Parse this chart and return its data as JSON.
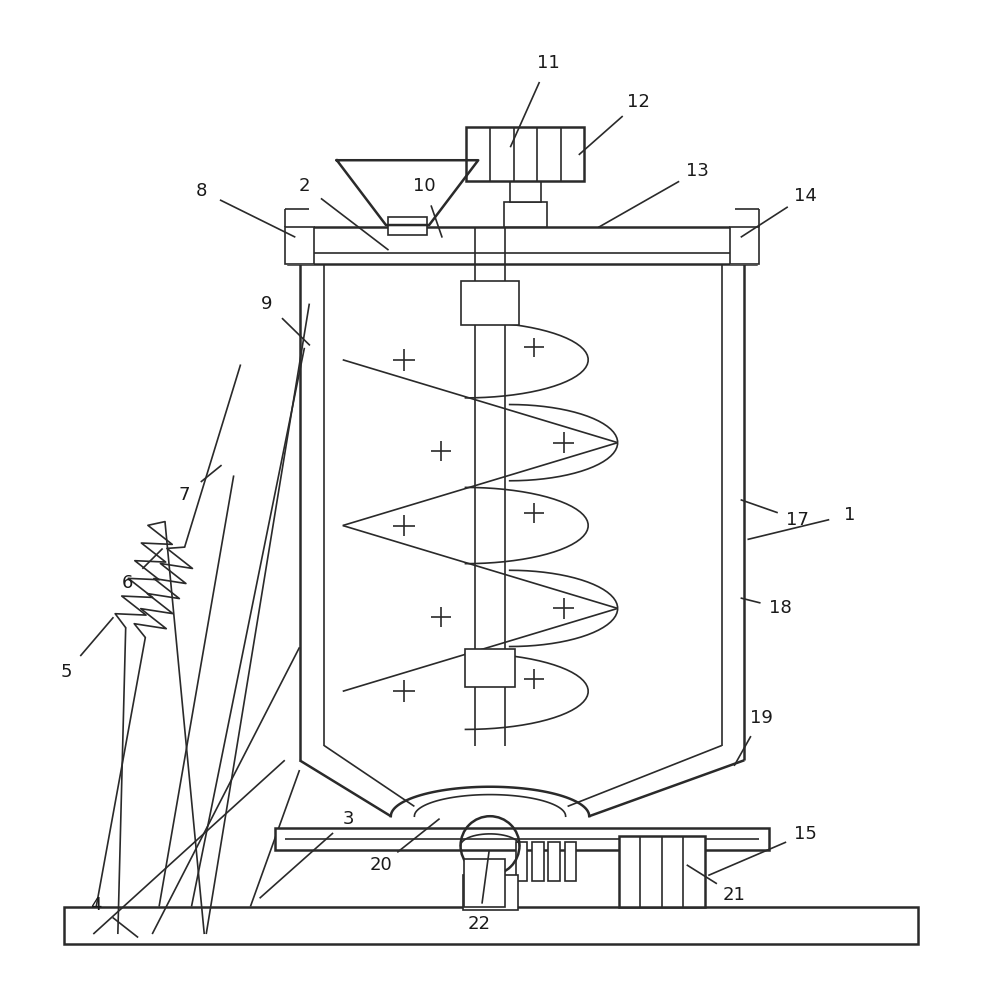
{
  "bg_color": "#ffffff",
  "line_color": "#2a2a2a",
  "lw_main": 1.8,
  "lw_thin": 1.2,
  "labels": {
    "1": [
      0.865,
      0.485,
      0.762,
      0.46
    ],
    "2": [
      0.31,
      0.82,
      0.395,
      0.755
    ],
    "3": [
      0.355,
      0.175,
      0.265,
      0.095
    ],
    "4": [
      0.098,
      0.088,
      0.14,
      0.055
    ],
    "5": [
      0.068,
      0.325,
      0.115,
      0.38
    ],
    "6": [
      0.13,
      0.415,
      0.165,
      0.45
    ],
    "7": [
      0.188,
      0.505,
      0.225,
      0.535
    ],
    "8": [
      0.205,
      0.815,
      0.3,
      0.768
    ],
    "9": [
      0.272,
      0.7,
      0.315,
      0.658
    ],
    "10": [
      0.432,
      0.82,
      0.45,
      0.768
    ],
    "11": [
      0.558,
      0.945,
      0.52,
      0.86
    ],
    "12": [
      0.65,
      0.905,
      0.59,
      0.852
    ],
    "13": [
      0.71,
      0.835,
      0.61,
      0.778
    ],
    "14": [
      0.82,
      0.81,
      0.755,
      0.768
    ],
    "15": [
      0.82,
      0.16,
      0.722,
      0.118
    ],
    "17": [
      0.812,
      0.48,
      0.755,
      0.5
    ],
    "18": [
      0.795,
      0.39,
      0.755,
      0.4
    ],
    "19": [
      0.775,
      0.278,
      0.748,
      0.23
    ],
    "20": [
      0.388,
      0.128,
      0.447,
      0.175
    ],
    "21": [
      0.748,
      0.098,
      0.7,
      0.128
    ],
    "22": [
      0.488,
      0.068,
      0.498,
      0.142
    ]
  }
}
